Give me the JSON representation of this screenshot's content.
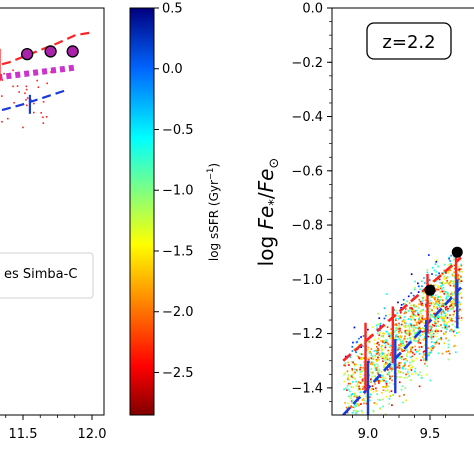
{
  "chart_data": [
    {
      "type": "scatter",
      "panel": "left (cropped)",
      "x_tick_labels": [
        "11.5",
        "12.0"
      ],
      "x_ticks": [
        11.5,
        12.0
      ],
      "xlim": [
        11.25,
        12.05
      ],
      "ylim": [
        -1.5,
        0.0
      ],
      "legend_text_visible": "es Simba-C",
      "series": [
        {
          "style": "magenta-filled-circles",
          "color": "#aa22aa",
          "points": [
            [
              11.25,
              -0.18
            ],
            [
              11.53,
              -0.17
            ],
            [
              11.7,
              -0.16
            ],
            [
              11.86,
              -0.16
            ]
          ]
        },
        {
          "style": "magenta-dotted-line",
          "color": "#cc33cc",
          "x": [
            11.25,
            11.87
          ],
          "y": [
            -0.26,
            -0.22
          ]
        },
        {
          "style": "red-dashed-line",
          "color": "#ff2222",
          "x": [
            11.25,
            11.4,
            11.6,
            11.75,
            11.88,
            12.0
          ],
          "y": [
            -0.22,
            -0.2,
            -0.16,
            -0.13,
            -0.1,
            -0.09
          ]
        },
        {
          "style": "blue-dashed-line",
          "color": "#1a3adb",
          "x": [
            11.25,
            11.5,
            11.62,
            11.8
          ],
          "y": [
            -0.39,
            -0.355,
            -0.335,
            -0.305
          ]
        },
        {
          "style": "red-errorbars",
          "color": "#ff2222",
          "points": [
            {
              "x": 11.33,
              "y": -0.21,
              "lo": -0.27,
              "hi": -0.15
            }
          ]
        },
        {
          "style": "blue-errorbars",
          "color": "#1a3adb",
          "points": [
            {
              "x": 11.55,
              "y": -0.36,
              "lo": -0.39,
              "hi": -0.32
            }
          ]
        }
      ]
    },
    {
      "type": "colorbar",
      "label": "log sSFR (Gyr$^{-1}$)",
      "label_text": "log sSFR (Gyr",
      "label_sup": "−1",
      "label_close": ")",
      "range": [
        -2.85,
        0.5
      ],
      "ticks": [
        0.5,
        0.0,
        -0.5,
        -1.0,
        -1.5,
        -2.0,
        -2.5
      ],
      "tick_labels": [
        "0.5",
        "0.0",
        "−0.5",
        "−1.0",
        "−1.5",
        "−2.0",
        "−2.5"
      ],
      "colormap": "jet_r"
    },
    {
      "type": "scatter",
      "panel": "right",
      "annotation": "z=2.2",
      "ylabel": "log Fe*/Fe⊙",
      "ylabel_parts": {
        "log": "log ",
        "fe1": "Fe",
        "star": "*",
        "slash": "/",
        "fe2": "Fe",
        "sun": "⊙"
      },
      "xlim": [
        8.8,
        9.75
      ],
      "ylim": [
        -1.5,
        0.0
      ],
      "x_ticks": [
        9.0,
        9.5
      ],
      "x_tick_labels": [
        "9.0",
        "9.5"
      ],
      "y_ticks": [
        0.0,
        -0.2,
        -0.4,
        -0.6,
        -0.8,
        -1.0,
        -1.2,
        -1.4
      ],
      "y_tick_labels": [
        "0.0",
        "−0.2",
        "−0.4",
        "−0.6",
        "−0.8",
        "−1.0",
        "−1.2",
        "−1.4"
      ],
      "series": [
        {
          "style": "black-filled-circles",
          "color": "#000000",
          "points": [
            [
              9.5,
              -1.04
            ],
            [
              9.72,
              -0.9
            ]
          ]
        },
        {
          "style": "red-dashed-line",
          "color": "#ff2222",
          "x": [
            8.8,
            9.75
          ],
          "y": [
            -1.3,
            -0.92
          ]
        },
        {
          "style": "blue-dashed-line",
          "color": "#1a3adb",
          "x": [
            8.8,
            9.75
          ],
          "y": [
            -1.5,
            -1.03
          ]
        },
        {
          "style": "red-errorbars",
          "color": "#ff2222",
          "points": [
            {
              "x": 8.98,
              "y": -1.255,
              "lo": -1.41,
              "hi": -1.16
            },
            {
              "x": 9.2,
              "y": -1.18,
              "lo": -1.31,
              "hi": -1.1
            },
            {
              "x": 9.48,
              "y": -1.08,
              "lo": -1.2,
              "hi": -0.98
            },
            {
              "x": 9.71,
              "y": -1.0,
              "lo": -1.1,
              "hi": -0.91
            }
          ]
        },
        {
          "style": "blue-errorbars",
          "color": "#1a3adb",
          "points": [
            {
              "x": 9.0,
              "y": -1.4,
              "lo": -1.5,
              "hi": -1.3
            },
            {
              "x": 9.22,
              "y": -1.32,
              "lo": -1.42,
              "hi": -1.22
            },
            {
              "x": 9.47,
              "y": -1.2,
              "lo": -1.3,
              "hi": -1.15
            },
            {
              "x": 9.72,
              "y": -1.08,
              "lo": -1.18,
              "hi": -1.0
            }
          ]
        }
      ]
    }
  ]
}
